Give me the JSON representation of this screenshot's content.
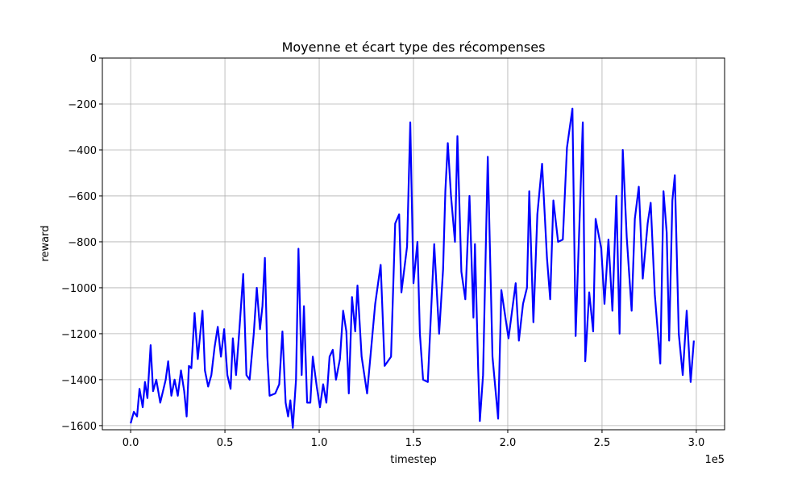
{
  "chart_data": {
    "type": "line",
    "title": "Moyenne et écart type des récompenses",
    "x_label": "timestep",
    "y_label": "reward",
    "x_offset_label": "1e5",
    "x": [
      0,
      1700,
      3400,
      4700,
      6400,
      7600,
      8900,
      10600,
      11900,
      13600,
      15700,
      18600,
      19900,
      21600,
      23300,
      25000,
      26700,
      28400,
      29700,
      30900,
      32200,
      33900,
      35600,
      36900,
      38100,
      39400,
      41100,
      42800,
      44500,
      46200,
      47900,
      49600,
      51300,
      53000,
      54200,
      55900,
      57600,
      59700,
      61400,
      63100,
      65300,
      66900,
      68600,
      69900,
      71200,
      72500,
      73700,
      76700,
      78800,
      80500,
      82200,
      83500,
      84700,
      86000,
      87700,
      89000,
      90700,
      91900,
      93600,
      95300,
      96600,
      98700,
      100400,
      102100,
      103800,
      105500,
      107200,
      108900,
      111000,
      112700,
      114400,
      115700,
      117400,
      119100,
      120300,
      122500,
      125400,
      129700,
      132600,
      134700,
      138100,
      140300,
      142400,
      143600,
      146600,
      148300,
      150000,
      152100,
      153400,
      155100,
      157600,
      161000,
      163600,
      165700,
      166900,
      168200,
      169900,
      172000,
      173300,
      175400,
      177500,
      179700,
      181800,
      182600,
      184300,
      185200,
      186900,
      189400,
      191900,
      194900,
      196600,
      200400,
      204200,
      205900,
      208100,
      210200,
      211400,
      213600,
      215700,
      218200,
      220800,
      222500,
      224200,
      226700,
      229200,
      231400,
      234300,
      236000,
      238600,
      239800,
      241100,
      243200,
      245300,
      246600,
      249600,
      251300,
      253400,
      255500,
      257600,
      259300,
      261000,
      263100,
      265700,
      267400,
      269500,
      271600,
      274200,
      275800,
      278000,
      280900,
      282600,
      284300,
      285600,
      287300,
      288600,
      290700,
      292800,
      294900,
      297000,
      298700
    ],
    "series": [
      {
        "name": "reward",
        "color": "#0000ff",
        "values": [
          -1590,
          -1540,
          -1560,
          -1440,
          -1520,
          -1410,
          -1480,
          -1250,
          -1450,
          -1400,
          -1500,
          -1400,
          -1320,
          -1470,
          -1400,
          -1470,
          -1360,
          -1450,
          -1560,
          -1340,
          -1350,
          -1110,
          -1310,
          -1200,
          -1100,
          -1360,
          -1430,
          -1380,
          -1260,
          -1170,
          -1300,
          -1180,
          -1380,
          -1440,
          -1220,
          -1380,
          -1190,
          -940,
          -1380,
          -1400,
          -1200,
          -1000,
          -1180,
          -1080,
          -870,
          -1300,
          -1470,
          -1460,
          -1420,
          -1190,
          -1500,
          -1560,
          -1490,
          -1610,
          -1400,
          -830,
          -1380,
          -1080,
          -1500,
          -1500,
          -1300,
          -1430,
          -1520,
          -1420,
          -1500,
          -1300,
          -1270,
          -1400,
          -1310,
          -1100,
          -1190,
          -1460,
          -1040,
          -1190,
          -990,
          -1300,
          -1460,
          -1070,
          -900,
          -1340,
          -1300,
          -720,
          -680,
          -1020,
          -820,
          -280,
          -980,
          -800,
          -1200,
          -1400,
          -1410,
          -810,
          -1200,
          -920,
          -580,
          -370,
          -600,
          -800,
          -340,
          -930,
          -1050,
          -600,
          -1130,
          -810,
          -1350,
          -1580,
          -1380,
          -430,
          -1300,
          -1570,
          -1010,
          -1220,
          -980,
          -1230,
          -1070,
          -1000,
          -580,
          -1150,
          -680,
          -460,
          -870,
          -1050,
          -620,
          -800,
          -790,
          -390,
          -220,
          -1210,
          -580,
          -280,
          -1320,
          -1020,
          -1190,
          -700,
          -830,
          -1070,
          -790,
          -1100,
          -600,
          -1200,
          -400,
          -780,
          -1100,
          -700,
          -560,
          -960,
          -720,
          -630,
          -1030,
          -1330,
          -580,
          -760,
          -1230,
          -620,
          -510,
          -1200,
          -1380,
          -1100,
          -1410,
          -1230
        ]
      }
    ],
    "xlim": [
      -15000,
      315000
    ],
    "ylim": [
      -1618,
      0
    ],
    "xticks": [
      {
        "value": 0,
        "label": "0.0"
      },
      {
        "value": 50000,
        "label": "0.5"
      },
      {
        "value": 100000,
        "label": "1.0"
      },
      {
        "value": 150000,
        "label": "1.5"
      },
      {
        "value": 200000,
        "label": "2.0"
      },
      {
        "value": 250000,
        "label": "2.5"
      },
      {
        "value": 300000,
        "label": "3.0"
      }
    ],
    "yticks": [
      {
        "value": -1600,
        "label": "−1600"
      },
      {
        "value": -1400,
        "label": "−1400"
      },
      {
        "value": -1200,
        "label": "−1200"
      },
      {
        "value": -1000,
        "label": "−1000"
      },
      {
        "value": -800,
        "label": "−800"
      },
      {
        "value": -600,
        "label": "−600"
      },
      {
        "value": -400,
        "label": "−400"
      },
      {
        "value": -200,
        "label": "−200"
      },
      0
    ],
    "grid": true
  }
}
